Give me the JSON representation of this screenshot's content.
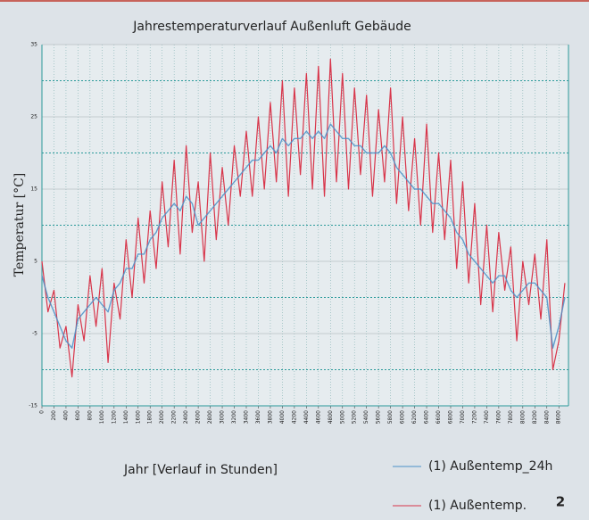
{
  "chart_data": {
    "type": "line",
    "title": "Jahrestemperaturverlauf Außenluft Gebäude",
    "xlabel": "Jahr [Verlauf in Stunden]",
    "ylabel": "Temperatur [°C]",
    "badge": "2",
    "x": [
      0,
      100,
      200,
      300,
      400,
      500,
      600,
      700,
      800,
      900,
      1000,
      1100,
      1200,
      1300,
      1400,
      1500,
      1600,
      1700,
      1800,
      1900,
      2000,
      2100,
      2200,
      2300,
      2400,
      2500,
      2600,
      2700,
      2800,
      2900,
      3000,
      3100,
      3200,
      3300,
      3400,
      3500,
      3600,
      3700,
      3800,
      3900,
      4000,
      4100,
      4200,
      4300,
      4400,
      4500,
      4600,
      4700,
      4800,
      4900,
      5000,
      5100,
      5200,
      5300,
      5400,
      5500,
      5600,
      5700,
      5800,
      5900,
      6000,
      6100,
      6200,
      6300,
      6400,
      6500,
      6600,
      6700,
      6800,
      6900,
      7000,
      7100,
      7200,
      7300,
      7400,
      7500,
      7600,
      7700,
      7800,
      7900,
      8000,
      8100,
      8200,
      8300,
      8400,
      8500,
      8600,
      8700
    ],
    "series": [
      {
        "name": "(1) Außentemp.",
        "color": "#d8354a",
        "values": [
          5,
          -2,
          1,
          -7,
          -4,
          -11,
          -1,
          -6,
          3,
          -4,
          4,
          -9,
          2,
          -3,
          8,
          0,
          11,
          2,
          12,
          4,
          16,
          7,
          19,
          6,
          21,
          9,
          16,
          5,
          20,
          8,
          18,
          10,
          21,
          14,
          23,
          14,
          25,
          15,
          27,
          16,
          30,
          14,
          29,
          17,
          31,
          15,
          32,
          14,
          33,
          16,
          31,
          15,
          29,
          17,
          28,
          14,
          26,
          16,
          29,
          13,
          25,
          12,
          22,
          10,
          24,
          9,
          20,
          8,
          19,
          4,
          16,
          2,
          13,
          -1,
          10,
          -2,
          9,
          1,
          7,
          -6,
          5,
          -1,
          6,
          -3,
          8,
          -10,
          -6,
          2
        ]
      },
      {
        "name": "(1) Außentemp_24h",
        "color": "#4a90c8",
        "values": [
          3,
          0,
          -2,
          -4,
          -6,
          -7,
          -3,
          -2,
          -1,
          0,
          -1,
          -2,
          1,
          2,
          4,
          4,
          6,
          6,
          8,
          9,
          11,
          12,
          13,
          12,
          14,
          13,
          10,
          11,
          12,
          13,
          14,
          15,
          16,
          17,
          18,
          19,
          19,
          20,
          21,
          20,
          22,
          21,
          22,
          22,
          23,
          22,
          23,
          22,
          24,
          23,
          22,
          22,
          21,
          21,
          20,
          20,
          20,
          21,
          20,
          18,
          17,
          16,
          15,
          15,
          14,
          13,
          13,
          12,
          11,
          9,
          8,
          6,
          5,
          4,
          3,
          2,
          3,
          3,
          1,
          0,
          1,
          2,
          2,
          1,
          0,
          -7,
          -4,
          0
        ]
      }
    ],
    "xlim": [
      0,
      8760
    ],
    "xticks": [
      0,
      200,
      400,
      600,
      800,
      1000,
      1200,
      1400,
      1600,
      1800,
      2000,
      2200,
      2400,
      2600,
      2800,
      3000,
      3200,
      3400,
      3600,
      3800,
      4000,
      4200,
      4400,
      4600,
      4800,
      5000,
      5200,
      5400,
      5600,
      5800,
      6000,
      6200,
      6400,
      6600,
      6800,
      7000,
      7200,
      7400,
      7600,
      7800,
      8000,
      8200,
      8400,
      8600
    ],
    "ylim": [
      -15,
      35
    ],
    "yticks": [
      -15,
      -5,
      5,
      15,
      25,
      35
    ],
    "yticks_minor": [
      -10,
      0,
      10,
      20,
      30
    ],
    "grid": true
  }
}
